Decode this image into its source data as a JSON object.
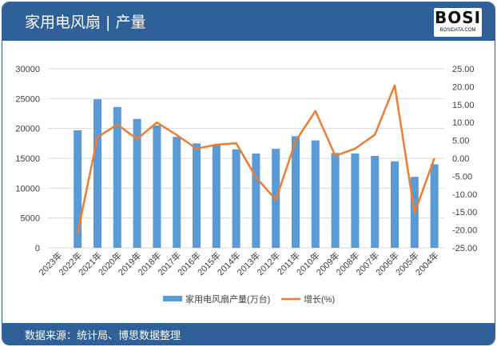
{
  "header": {
    "title": "家用电风扇 | 产量",
    "logo_text": "BOSI",
    "logo_sub": "BOSIDATA.COM"
  },
  "footer": {
    "source": "数据来源：统计局、博思数据整理"
  },
  "colors": {
    "header": "#2f6098",
    "bar": "#5b9bd5",
    "line": "#ed7d31"
  },
  "chart_data": {
    "type": "bar+line",
    "categories": [
      "2023年",
      "2022年",
      "2021年",
      "2020年",
      "2019年",
      "2018年",
      "2017年",
      "2016年",
      "2015年",
      "2014年",
      "2013年",
      "2012年",
      "2011年",
      "2010年",
      "2009年",
      "2008年",
      "2007年",
      "2006年",
      "2005年",
      "2004年"
    ],
    "series": [
      {
        "name": "家用电风扇产量(万台)",
        "type": "bar",
        "axis": "left",
        "values": [
          null,
          19700,
          24900,
          23600,
          21600,
          20500,
          18600,
          17500,
          17300,
          16500,
          15800,
          16600,
          18700,
          18000,
          15900,
          15800,
          15400,
          14500,
          11900,
          14000
        ]
      },
      {
        "name": "增长(%)",
        "type": "line",
        "axis": "right",
        "values": [
          null,
          -20.8,
          5.9,
          9.4,
          5.4,
          10.0,
          6.5,
          2.7,
          3.8,
          4.2,
          -5.3,
          -11.6,
          4.8,
          13.2,
          0.7,
          2.7,
          6.6,
          20.4,
          -15.3,
          0.0
        ]
      }
    ],
    "yleft": {
      "lim": [
        0,
        30000
      ],
      "ticks": [
        "0",
        "5000",
        "10000",
        "15000",
        "20000",
        "25000",
        "30000"
      ]
    },
    "yright": {
      "lim": [
        -25,
        25
      ],
      "ticks": [
        "-25.00",
        "-20.00",
        "-15.00",
        "-10.00",
        "-5.00",
        "0.00",
        "5.00",
        "10.00",
        "15.00",
        "20.00",
        "25.00"
      ]
    },
    "legend_position": "bottom",
    "grid": true
  }
}
